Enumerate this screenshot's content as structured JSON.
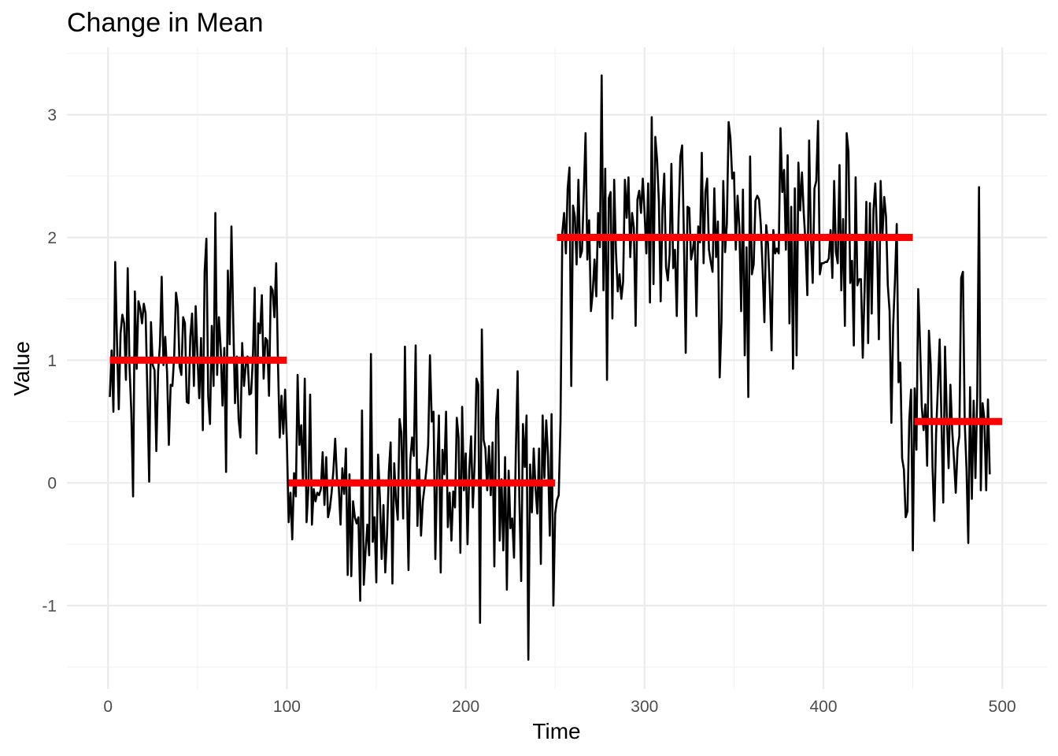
{
  "chart_data": {
    "type": "line",
    "title": "Change in Mean",
    "xlabel": "Time",
    "ylabel": "Value",
    "xlim": [
      -23,
      525
    ],
    "ylim": [
      -1.68,
      3.55
    ],
    "x_ticks": [
      0,
      100,
      200,
      300,
      400,
      500
    ],
    "x_tick_labels": [
      "0",
      "100",
      "200",
      "300",
      "400",
      "500"
    ],
    "y_ticks": [
      -1,
      0,
      1,
      2,
      3
    ],
    "y_tick_labels": [
      "-1",
      "0",
      "1",
      "2",
      "3"
    ],
    "grid": true,
    "legend": "none",
    "colors": {
      "series": "#000000",
      "segment_means": "#ff0000"
    },
    "series": [
      {
        "x_start": 1,
        "x_step": 1,
        "values": [
          0.7,
          1.08,
          0.58,
          1.8,
          1.15,
          0.6,
          1.22,
          1.37,
          1.3,
          0.84,
          1.75,
          0.95,
          0.58,
          -0.11,
          1.56,
          0.93,
          1.48,
          1.42,
          1.3,
          1.46,
          1.38,
          0.72,
          0.01,
          1.31,
          0.96,
          0.92,
          0.26,
          0.91,
          1.12,
          1.68,
          0.96,
          1.19,
          0.9,
          0.31,
          0.8,
          0.79,
          1.04,
          1.55,
          1.44,
          0.95,
          0.88,
          1.35,
          1.3,
          0.66,
          0.65,
          1.19,
          1.38,
          0.79,
          1.44,
          1.03,
          0.69,
          1.18,
          0.43,
          1.72,
          1.99,
          0.71,
          0.48,
          1.28,
          0.79,
          2.2,
          0.88,
          1.35,
          1.09,
          0.63,
          1.1,
          0.09,
          1.73,
          1.13,
          2.09,
          1.32,
          0.65,
          1.03,
          0.52,
          0.37,
          1.14,
          0.79,
          0.96,
          1.03,
          0.72,
          0.73,
          1.02,
          1.59,
          0.24,
          1.3,
          1.22,
          1.53,
          0.85,
          1.18,
          1.16,
          0.71,
          1.6,
          1.57,
          1.35,
          1.79,
          0.99,
          0.37,
          0.71,
          0.4,
          0.76,
          0.33,
          -0.32,
          -0.08,
          -0.46,
          0.08,
          -0.11,
          0.88,
          0.31,
          0.47,
          -0.01,
          0.85,
          -0.32,
          -0.05,
          0.72,
          -0.34,
          -0.05,
          -0.15,
          -0.08,
          -0.1,
          -0.05,
          0.25,
          -0.18,
          0.21,
          -0.28,
          -0.21,
          -0.08,
          0.1,
          0.36,
          0.03,
          -0.03,
          -0.34,
          0.12,
          -0.09,
          0.28,
          -0.75,
          0.07,
          -0.76,
          -0.15,
          -0.28,
          -0.33,
          -0.28,
          -0.96,
          0.59,
          -0.83,
          -0.55,
          -0.34,
          -0.59,
          1.05,
          -0.48,
          -0.28,
          -0.81,
          0.23,
          -0.12,
          -0.62,
          -0.18,
          -0.73,
          -0.42,
          0.09,
          0.33,
          -0.82,
          0.16,
          -0.14,
          -0.3,
          0.52,
          0.41,
          -0.29,
          1.11,
          0.04,
          -0.71,
          0.18,
          0.37,
          0.22,
          1.12,
          -0.35,
          0.11,
          -0.43,
          -0.15,
          -0.03,
          0.11,
          0.31,
          1.04,
          0.5,
          0.58,
          -0.62,
          0.09,
          0.55,
          -0.73,
          0.27,
          0.07,
          0.58,
          -0.36,
          -0.08,
          -0.47,
          -0.07,
          -0.2,
          0.53,
          0.37,
          -0.57,
          0.62,
          -0.06,
          0.24,
          -0.5,
          0.11,
          0.38,
          -0.2,
          0.17,
          0.85,
          0.8,
          -1.14,
          1.25,
          0.35,
          0.28,
          -0.06,
          0.3,
          -0.1,
          0.33,
          -0.68,
          0.52,
          0.76,
          -0.47,
          0.03,
          -0.55,
          0.21,
          -0.87,
          0.1,
          -0.37,
          -0.29,
          -0.61,
          0.25,
          0.91,
          -0.14,
          -0.8,
          0.48,
          0.13,
          0.55,
          -1.44,
          0.15,
          -0.24,
          0.28,
          -0.04,
          -0.25,
          0.28,
          -0.66,
          0.55,
          0.04,
          0.51,
          0.22,
          -0.43,
          0.56,
          -1.0,
          -0.25,
          -0.14,
          -0.1,
          0.5,
          2.04,
          2.2,
          1.87,
          2.4,
          2.57,
          0.79,
          2.26,
          2.17,
          1.78,
          2.47,
          1.84,
          1.89,
          2.35,
          2.85,
          1.82,
          2.14,
          1.4,
          1.55,
          1.82,
          1.52,
          2.2,
          1.92,
          3.32,
          1.57,
          2.56,
          0.84,
          2.32,
          2.37,
          1.34,
          2.47,
          1.88,
          1.56,
          1.7,
          1.5,
          1.64,
          2.47,
          2.16,
          2.49,
          1.84,
          2.2,
          2.08,
          1.28,
          2.31,
          2.38,
          2.2,
          2.48,
          2.2,
          1.87,
          2.44,
          1.47,
          2.98,
          1.62,
          2.82,
          2.63,
          2.29,
          1.48,
          2.23,
          2.52,
          1.76,
          1.65,
          1.86,
          2.6,
          1.75,
          1.9,
          1.36,
          2.16,
          2.66,
          2.75,
          1.99,
          1.06,
          2.25,
          2.24,
          1.82,
          1.9,
          2.02,
          1.36,
          2.09,
          1.96,
          2.69,
          1.79,
          2.37,
          2.48,
          1.9,
          1.8,
          1.72,
          2.4,
          1.84,
          2.13,
          0.86,
          1.31,
          2.46,
          1.88,
          2.11,
          2.94,
          2.81,
          2.48,
          2.53,
          1.9,
          2.34,
          2.08,
          1.4,
          2.39,
          1.04,
          1.92,
          0.7,
          2.66,
          1.7,
          1.78,
          2.3,
          2.34,
          2.31,
          2.1,
          1.74,
          1.31,
          2.1,
          1.95,
          1.6,
          1.08,
          2.06,
          1.87,
          1.91,
          1.87,
          2.89,
          2.37,
          2.55,
          1.9,
          2.67,
          1.3,
          2.25,
          0.93,
          2.4,
          1.04,
          2.61,
          2.22,
          2.53,
          2.2,
          1.95,
          1.53,
          2.79,
          2.0,
          1.63,
          2.4,
          2.46,
          2.95,
          1.7,
          1.79,
          1.79,
          1.8,
          1.8,
          1.83,
          2.06,
          1.67,
          2.46,
          1.88,
          1.79,
          2.59,
          1.57,
          2.15,
          1.28,
          2.85,
          2.7,
          1.63,
          1.81,
          1.12,
          2.49,
          1.61,
          1.66,
          1.66,
          1.02,
          1.56,
          2.29,
          1.14,
          2.28,
          1.38,
          2.23,
          2.44,
          1.98,
          1.17,
          2.46,
          2.01,
          2.33,
          2.17,
          1.61,
          1.4,
          0.49,
          1.28,
          1.65,
          2.11,
          0.82,
          0.98,
          0.2,
          0.11,
          -0.28,
          -0.23,
          0.51,
          0.76,
          -0.55,
          0.77,
          0.27,
          1.58,
          1.15,
          0.62,
          0.43,
          0.64,
          0.14,
          1.24,
          0.96,
          0.13,
          -0.31,
          0.4,
          0.78,
          1.17,
          0.5,
          -0.16,
          1.11,
          0.54,
          0.12,
          0.8,
          0.43,
          0.19,
          -0.08,
          0.28,
          0.38,
          1.67,
          1.72,
          0.5,
          0.12,
          -0.49,
          0.78,
          -0.13,
          0.67,
          0.04,
          0.71,
          2.41,
          -0.06,
          0.65,
          0.52,
          -0.06,
          0.68,
          0.07
        ]
      }
    ],
    "segment_means": [
      {
        "x0": 1,
        "x1": 100,
        "value": 1.0
      },
      {
        "x0": 101,
        "x1": 250,
        "value": 0.0
      },
      {
        "x0": 251,
        "x1": 450,
        "value": 2.0
      },
      {
        "x0": 451,
        "x1": 500,
        "value": 0.5
      }
    ]
  }
}
